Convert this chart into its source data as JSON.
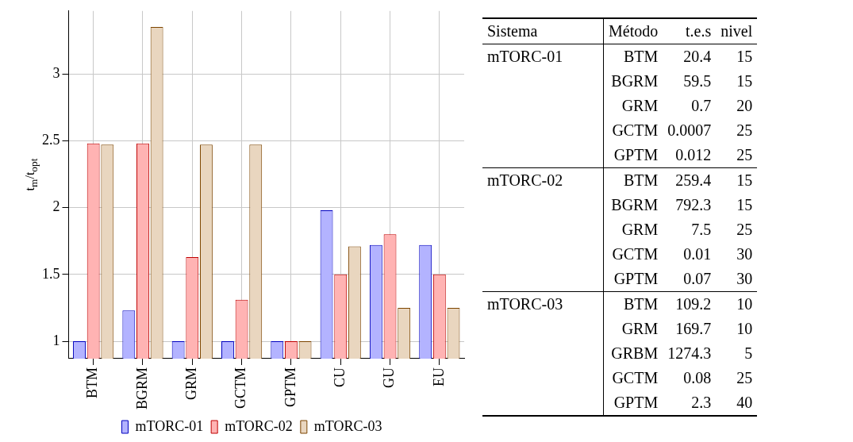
{
  "chart_data": [
    {
      "type": "bar",
      "ylabel": "t$_{m}$/t$_{opt}$",
      "categories": [
        "BTM",
        "BGRM",
        "GRM",
        "GCTM",
        "GPTM",
        "CU",
        "GU",
        "EU"
      ],
      "series": [
        {
          "name": "mTORC-01",
          "color": "#b3b3ff",
          "values": [
            1,
            1.23,
            1,
            1,
            1,
            1.98,
            1.72,
            1.72
          ]
        },
        {
          "name": "mTORC-02",
          "color": "#ffb3b3",
          "values": [
            2.48,
            2.48,
            1.63,
            1.31,
            1,
            1.5,
            1.8,
            1.5
          ]
        },
        {
          "name": "mTORC-03",
          "color": "#e9d6bf",
          "values": [
            2.47,
            3.35,
            2.47,
            2.47,
            1,
            1.71,
            1.25,
            1.25
          ]
        }
      ],
      "ylim": [
        0.87,
        3.47
      ],
      "yticks": [
        1,
        1.5,
        2,
        2.5,
        3
      ],
      "grid": true,
      "legend": "bottom"
    },
    {
      "type": "other",
      "categories": [
        "Sistema",
        "Método",
        "t.e.s",
        "nivel"
      ],
      "cell_labels": [
        [
          "mTORC-01",
          "BTM",
          "20.4",
          "15"
        ],
        [
          null,
          "BGRM",
          "59.5",
          "15"
        ],
        [
          null,
          "GRM",
          "0.7",
          "20"
        ],
        [
          null,
          "GCTM",
          "0.0007",
          "25"
        ],
        [
          null,
          "GPTM",
          "0.012",
          "25"
        ],
        [
          "mTORC-02",
          "BTM",
          "259.4",
          "15"
        ],
        [
          null,
          "BGRM",
          "792.3",
          "15"
        ],
        [
          null,
          "GRM",
          "7.5",
          "25"
        ],
        [
          null,
          "GCTM",
          "0.01",
          "30"
        ],
        [
          null,
          "GPTM",
          "0.07",
          "30"
        ],
        [
          "mTORC-03",
          "BTM",
          "109.2",
          "10"
        ],
        [
          null,
          "GRM",
          "169.7",
          "10"
        ],
        [
          null,
          "GRBM",
          "1274.3",
          "5"
        ],
        [
          null,
          "GCTM",
          "0.08",
          "25"
        ],
        [
          null,
          "GPTM",
          "2.3",
          "40"
        ]
      ]
    }
  ]
}
